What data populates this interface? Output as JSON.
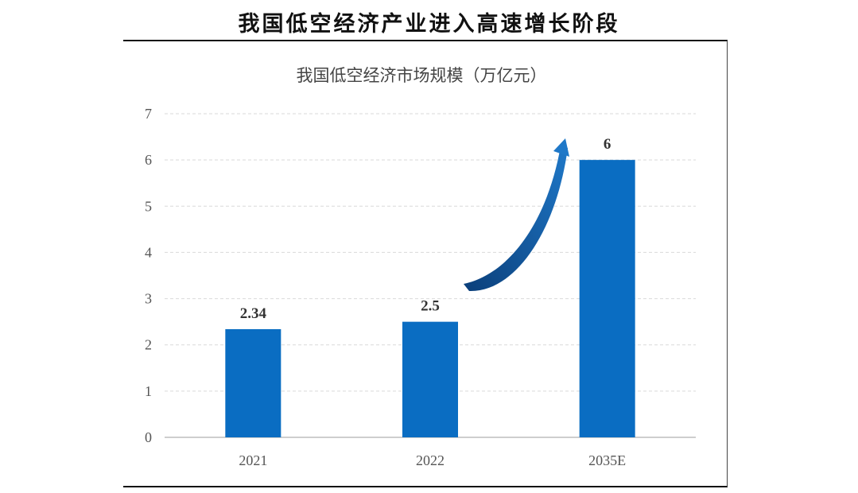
{
  "page_title": "我国低空经济产业进入高速增长阶段",
  "chart_data": {
    "type": "bar",
    "title": "我国低空经济市场规模（万亿元）",
    "categories": [
      "2021",
      "2022",
      "2035E"
    ],
    "values": [
      2.34,
      2.5,
      6
    ],
    "data_labels": [
      "2.34",
      "2.5",
      "6"
    ],
    "ylim": [
      0,
      7
    ],
    "y_ticks": [
      "0",
      "1",
      "2",
      "3",
      "4",
      "5",
      "6",
      "7"
    ],
    "grid": true,
    "bar_color": "#0A6DC2",
    "annotation": "growth-arrow from 2022 to 2035E"
  }
}
